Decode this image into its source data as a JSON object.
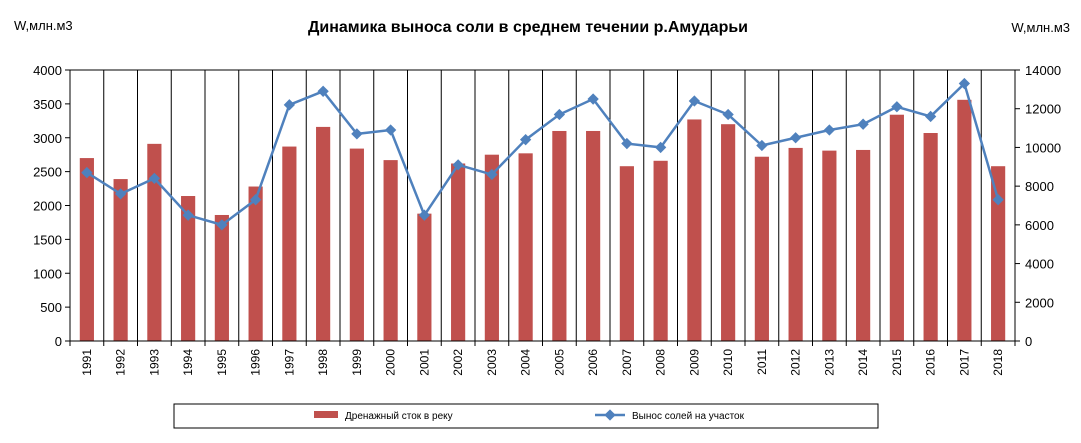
{
  "chart_data": {
    "type": "bar",
    "title": "Динамика выноса соли в среднем течении р.Амударьи",
    "ylabel_left": "W,млн.м3",
    "ylabel_right": "W,млн.м3",
    "categories": [
      "1991",
      "1992",
      "1993",
      "1994",
      "1995",
      "1996",
      "1997",
      "1998",
      "1999",
      "2000",
      "2001",
      "2002",
      "2003",
      "2004",
      "2005",
      "2006",
      "2007",
      "2008",
      "2009",
      "2010",
      "2011",
      "2012",
      "2013",
      "2014",
      "2015",
      "2016",
      "2017",
      "2018"
    ],
    "ylim_left": [
      0,
      4000
    ],
    "yticks_left": [
      "0",
      "500",
      "1000",
      "1500",
      "2000",
      "2500",
      "3000",
      "3500",
      "4000"
    ],
    "ylim_right": [
      0,
      14000
    ],
    "yticks_right": [
      "0",
      "2000",
      "4000",
      "6000",
      "8000",
      "10000",
      "12000",
      "14000"
    ],
    "grid": "vertical",
    "legend_position": "bottom",
    "series": [
      {
        "name": "Дренажный сток в реку",
        "type": "bar",
        "axis": "left",
        "color": "#C0504D",
        "values": [
          2700,
          2390,
          2910,
          2140,
          1860,
          2280,
          2870,
          3160,
          2840,
          2670,
          1880,
          2620,
          2750,
          2770,
          3100,
          3100,
          2580,
          2660,
          3270,
          3200,
          2720,
          2850,
          2810,
          2820,
          3340,
          3070,
          3560,
          2580
        ]
      },
      {
        "name": "Вынос солей на участок",
        "type": "line",
        "axis": "right",
        "color": "#4F81BD",
        "values": [
          8700,
          7600,
          8400,
          6500,
          6000,
          7300,
          12200,
          12900,
          10700,
          10900,
          6500,
          9100,
          8600,
          10400,
          11700,
          12500,
          10200,
          10000,
          12400,
          11700,
          10100,
          10500,
          10900,
          11200,
          12100,
          11600,
          13300,
          7300
        ]
      }
    ]
  }
}
